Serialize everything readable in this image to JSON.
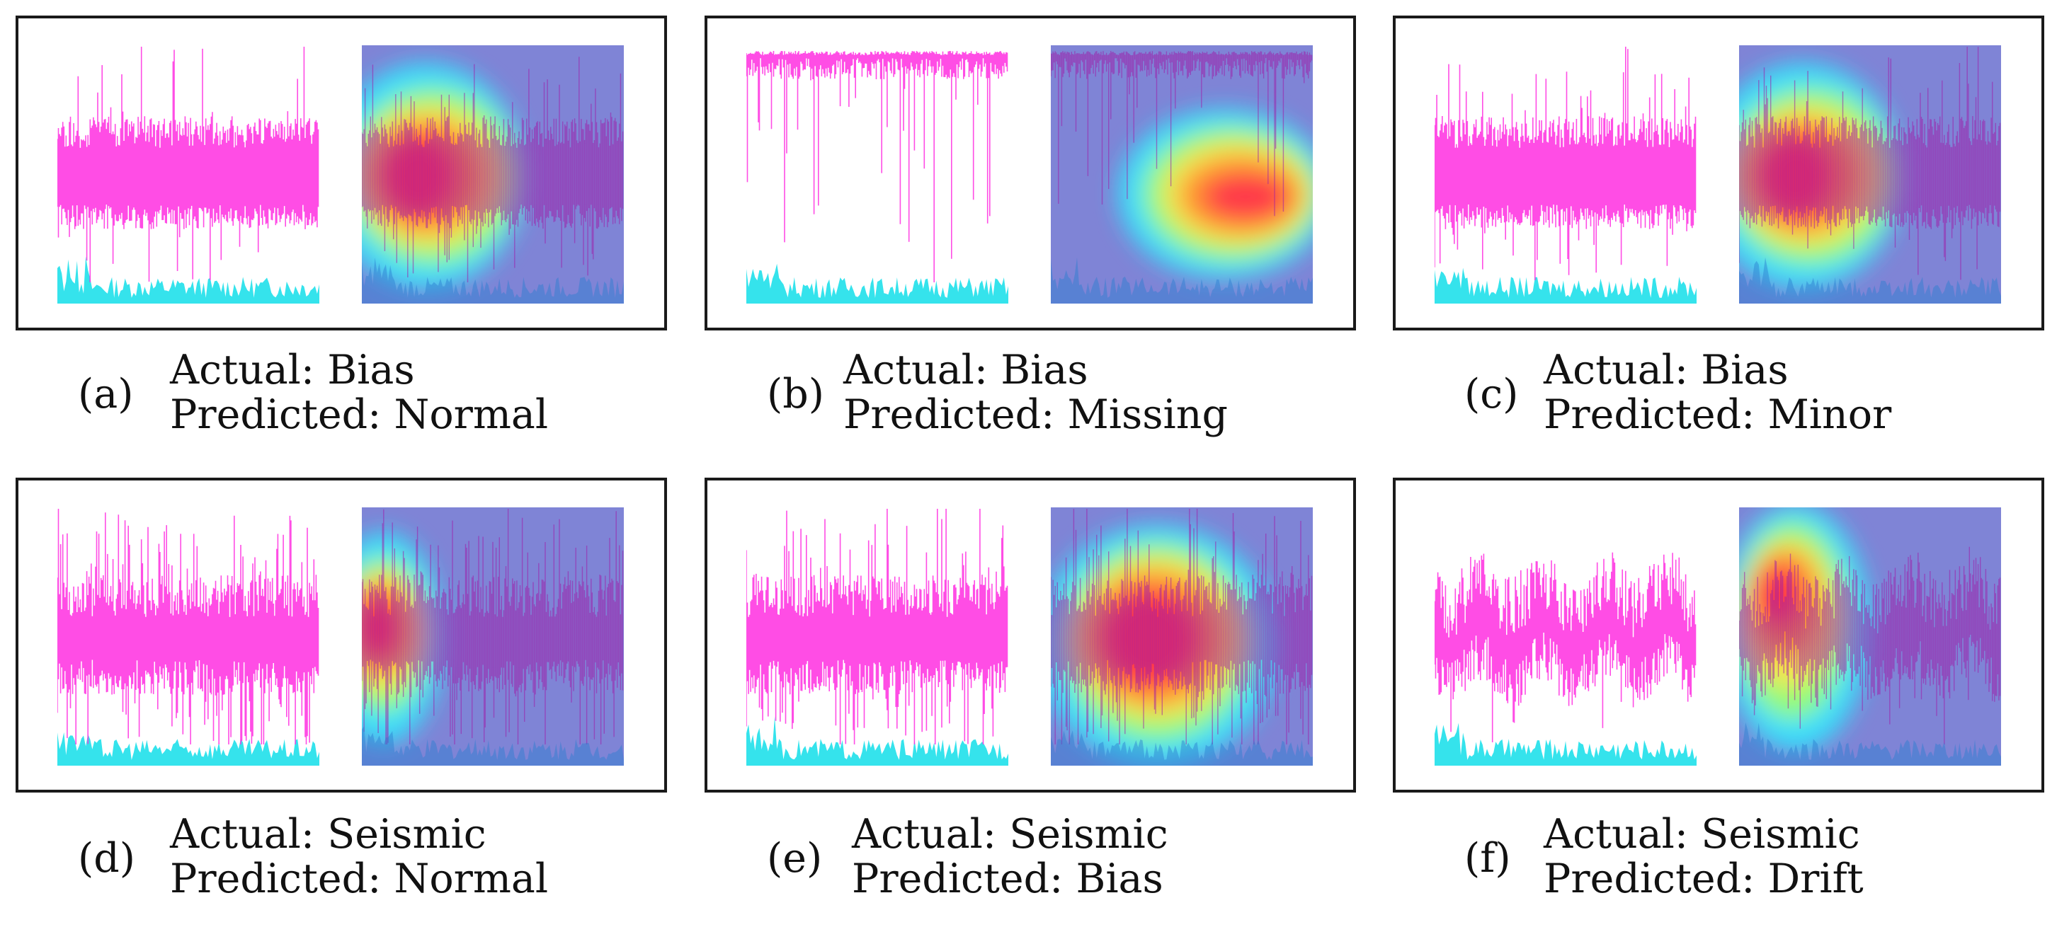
{
  "figure": {
    "panels": [
      {
        "letter": "(a)",
        "actual_prefix": "Actual: ",
        "actual": "Bias",
        "predicted_prefix": "Predicted: ",
        "predicted": "Normal",
        "signal": "dense",
        "heat": "left-center"
      },
      {
        "letter": "(b)",
        "actual_prefix": "Actual: ",
        "actual": "Bias",
        "predicted_prefix": "Predicted: ",
        "predicted": "Missing",
        "signal": "top-flat",
        "heat": "right-lower"
      },
      {
        "letter": "(c)",
        "actual_prefix": "Actual: ",
        "actual": "Bias",
        "predicted_prefix": "Predicted: ",
        "predicted": "Minor",
        "signal": "dense",
        "heat": "left-center"
      },
      {
        "letter": "(d)",
        "actual_prefix": "Actual: ",
        "actual": "Seismic",
        "predicted_prefix": "Predicted: ",
        "predicted": "Normal",
        "signal": "spiky",
        "heat": "far-left"
      },
      {
        "letter": "(e)",
        "actual_prefix": "Actual: ",
        "actual": "Seismic",
        "predicted_prefix": "Predicted: ",
        "predicted": "Bias",
        "signal": "spiky",
        "heat": "center"
      },
      {
        "letter": "(f)",
        "actual_prefix": "Actual: ",
        "actual": "Seismic",
        "predicted_prefix": "Predicted: ",
        "predicted": "Drift",
        "signal": "sparse",
        "heat": "left-upper"
      }
    ],
    "colors": {
      "signal": "#ff2ee0",
      "signal_dark": "#a01aa8",
      "noise": "#1fe0ea",
      "cam_bg": "#7f84d6",
      "frame": "#1a1a1a"
    }
  }
}
